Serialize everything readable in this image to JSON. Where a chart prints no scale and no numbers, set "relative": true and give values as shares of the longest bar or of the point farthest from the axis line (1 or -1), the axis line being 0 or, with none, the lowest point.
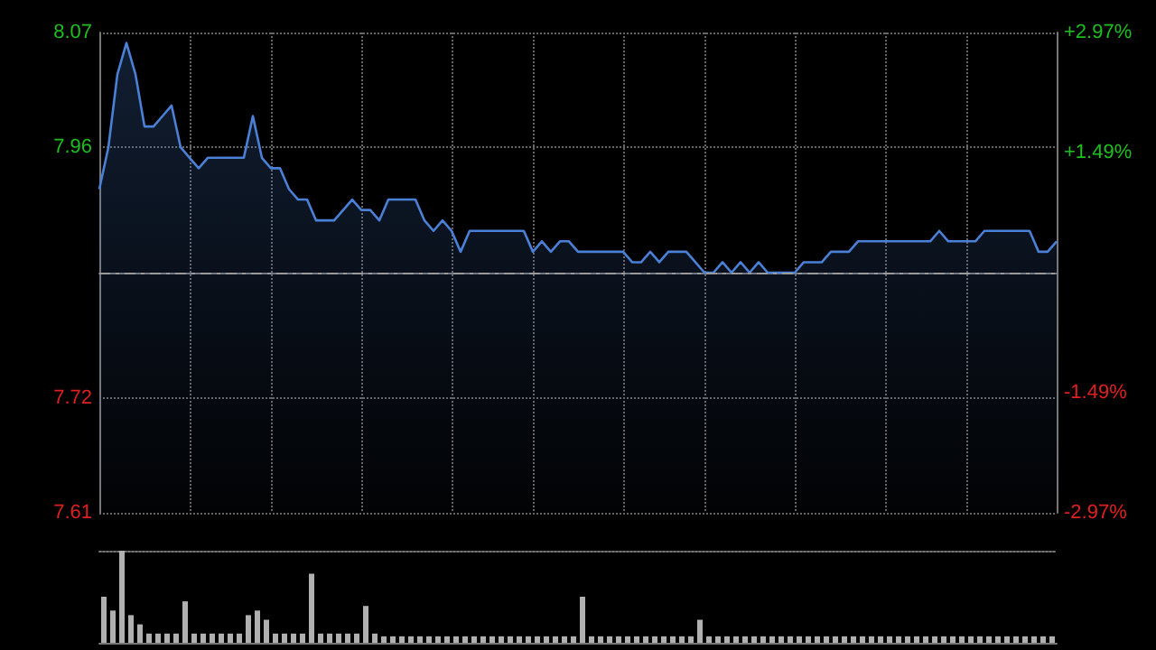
{
  "chart_data": [
    {
      "type": "area",
      "categories": [
        null,
        null,
        null,
        null,
        null,
        null,
        null,
        null,
        null,
        null,
        null,
        null,
        null,
        null,
        null,
        null,
        null,
        null,
        null,
        null,
        null,
        null,
        null,
        null,
        null,
        null,
        null,
        null,
        null,
        null,
        null,
        null,
        null,
        null,
        null,
        null,
        null,
        null,
        null,
        null,
        null,
        null,
        null,
        null,
        null,
        null,
        null,
        null,
        null,
        null,
        null,
        null,
        null,
        null,
        null,
        null,
        null,
        null,
        null,
        null,
        null,
        null,
        null,
        null,
        null,
        null,
        null,
        null,
        null,
        null,
        null,
        null,
        null,
        null,
        null,
        null,
        null,
        null,
        null,
        null,
        null,
        null,
        null,
        null,
        null,
        null,
        null,
        null,
        null,
        null,
        null,
        null,
        null,
        null,
        null,
        null,
        null,
        null,
        null,
        null,
        null,
        null,
        null,
        null,
        null,
        null,
        null
      ],
      "series": [
        {
          "color": "#4a80d6",
          "values": [
            7.92,
            7.96,
            8.03,
            8.06,
            8.03,
            7.98,
            7.98,
            7.99,
            8.0,
            7.96,
            7.95,
            7.94,
            7.95,
            7.95,
            7.95,
            7.95,
            7.95,
            7.99,
            7.95,
            7.94,
            7.94,
            7.92,
            7.91,
            7.91,
            7.89,
            7.89,
            7.89,
            7.9,
            7.91,
            7.9,
            7.9,
            7.89,
            7.91,
            7.91,
            7.91,
            7.91,
            7.89,
            7.88,
            7.89,
            7.88,
            7.86,
            7.88,
            7.88,
            7.88,
            7.88,
            7.88,
            7.88,
            7.88,
            7.86,
            7.87,
            7.86,
            7.87,
            7.87,
            7.86,
            7.86,
            7.86,
            7.86,
            7.86,
            7.86,
            7.85,
            7.85,
            7.86,
            7.85,
            7.86,
            7.86,
            7.86,
            7.85,
            7.84,
            7.84,
            7.85,
            7.84,
            7.85,
            7.84,
            7.85,
            7.84,
            7.84,
            7.84,
            7.84,
            7.85,
            7.85,
            7.85,
            7.86,
            7.86,
            7.86,
            7.87,
            7.87,
            7.87,
            7.87,
            7.87,
            7.87,
            7.87,
            7.87,
            7.87,
            7.88,
            7.87,
            7.87,
            7.87,
            7.87,
            7.88,
            7.88,
            7.88,
            7.88,
            7.88,
            7.88,
            7.86,
            7.86,
            7.87
          ]
        }
      ],
      "ylim": [
        7.61,
        8.07
      ],
      "yticks": [
        7.61,
        7.72,
        7.96,
        8.07
      ],
      "y2lim": [
        -2.97,
        2.97
      ],
      "y2ticks": [
        {
          "value": -2.97,
          "label": "-2.97%"
        },
        {
          "value": -1.49,
          "label": "-1.49%"
        },
        {
          "value": 1.49,
          "label": "+1.49%"
        },
        {
          "value": 2.97,
          "label": "+2.97%"
        }
      ],
      "grid": true,
      "ref_lines": [
        {
          "axis": "y",
          "value": 7.84,
          "label": null,
          "color": "#9a9a9a",
          "line_style": "dashed"
        }
      ]
    },
    {
      "type": "bar",
      "relative": true,
      "categories": [
        null,
        null,
        null,
        null,
        null,
        null,
        null,
        null,
        null,
        null,
        null,
        null,
        null,
        null,
        null,
        null,
        null,
        null,
        null,
        null,
        null,
        null,
        null,
        null,
        null,
        null,
        null,
        null,
        null,
        null,
        null,
        null,
        null,
        null,
        null,
        null,
        null,
        null,
        null,
        null,
        null,
        null,
        null,
        null,
        null,
        null,
        null,
        null,
        null,
        null,
        null,
        null,
        null,
        null,
        null,
        null,
        null,
        null,
        null,
        null,
        null,
        null,
        null,
        null,
        null,
        null,
        null,
        null,
        null,
        null,
        null,
        null,
        null,
        null,
        null,
        null,
        null,
        null,
        null,
        null,
        null,
        null,
        null,
        null,
        null,
        null,
        null,
        null,
        null,
        null,
        null,
        null,
        null,
        null,
        null,
        null,
        null,
        null,
        null,
        null,
        null,
        null,
        null,
        null,
        null,
        null
      ],
      "series": [
        {
          "color": "#b0b0b0",
          "values": [
            0.5,
            0.35,
            1.0,
            0.3,
            0.2,
            0.1,
            0.1,
            0.1,
            0.1,
            0.45,
            0.1,
            0.1,
            0.1,
            0.1,
            0.1,
            0.1,
            0.3,
            0.35,
            0.25,
            0.1,
            0.1,
            0.1,
            0.1,
            0.75,
            0.1,
            0.1,
            0.1,
            0.1,
            0.1,
            0.4,
            0.1,
            0.07,
            0.07,
            0.07,
            0.07,
            0.07,
            0.07,
            0.07,
            0.07,
            0.07,
            0.07,
            0.07,
            0.07,
            0.07,
            0.07,
            0.07,
            0.07,
            0.07,
            0.07,
            0.07,
            0.07,
            0.07,
            0.07,
            0.5,
            0.07,
            0.07,
            0.07,
            0.07,
            0.07,
            0.07,
            0.07,
            0.07,
            0.07,
            0.07,
            0.07,
            0.07,
            0.25,
            0.07,
            0.07,
            0.07,
            0.07,
            0.07,
            0.07,
            0.07,
            0.07,
            0.07,
            0.07,
            0.07,
            0.07,
            0.07,
            0.07,
            0.07,
            0.07,
            0.07,
            0.07,
            0.07,
            0.07,
            0.07,
            0.07,
            0.07,
            0.07,
            0.07,
            0.07,
            0.07,
            0.07,
            0.07,
            0.07,
            0.07,
            0.07,
            0.07,
            0.07,
            0.07,
            0.07,
            0.07,
            0.07,
            0.07
          ]
        }
      ]
    }
  ]
}
